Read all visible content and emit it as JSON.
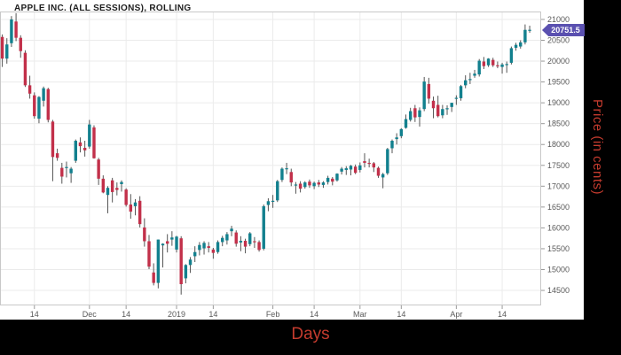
{
  "title": "APPLE INC. (ALL SESSIONS), ROLLING",
  "axes": {
    "x_title": "Days",
    "y_title": "Price (in cents)"
  },
  "last_price_label": "20751.5",
  "colors": {
    "up": "#12808e",
    "down": "#c2304a",
    "wick": "#555555",
    "grid": "#ebebeb",
    "border": "#c8c8c8",
    "tick_mark": "#9a9a9a",
    "tick_text": "#595959",
    "axis_title": "#c43b2e",
    "badge_bg": "#5a50b0",
    "badge_text": "#ffffff",
    "chart_bg": "#ffffff",
    "page_bg": "#000000"
  },
  "chart_data": {
    "type": "candlestick",
    "title": "APPLE INC. (ALL SESSIONS), ROLLING",
    "xlabel": "Days",
    "ylabel": "Price (in cents)",
    "legend": "none",
    "grid": true,
    "ylim": [
      14140,
      21190
    ],
    "y_ticks": [
      14500,
      15000,
      15500,
      16000,
      16500,
      17000,
      17500,
      18000,
      18500,
      19000,
      19500,
      20000,
      20500,
      21000
    ],
    "x_tick_labels": [
      {
        "index": 7,
        "label": "14"
      },
      {
        "index": 19,
        "label": "Dec"
      },
      {
        "index": 27,
        "label": "14"
      },
      {
        "index": 38,
        "label": "2019"
      },
      {
        "index": 46,
        "label": "14"
      },
      {
        "index": 59,
        "label": "Feb"
      },
      {
        "index": 68,
        "label": "14"
      },
      {
        "index": 78,
        "label": "Mar"
      },
      {
        "index": 87,
        "label": "14"
      },
      {
        "index": 99,
        "label": "Apr"
      },
      {
        "index": 109,
        "label": "14"
      }
    ],
    "last_price": 20751.5,
    "columns": [
      "date",
      "open",
      "high",
      "low",
      "close"
    ],
    "candles": [
      [
        "2018-11-05",
        20580,
        20640,
        19860,
        20060
      ],
      [
        "2018-11-06",
        20060,
        20550,
        19940,
        20400
      ],
      [
        "2018-11-07",
        20430,
        21080,
        20340,
        21000
      ],
      [
        "2018-11-08",
        20950,
        21150,
        20480,
        20560
      ],
      [
        "2018-11-09",
        20560,
        20620,
        20080,
        20240
      ],
      [
        "2018-11-12",
        20200,
        20260,
        19380,
        19420
      ],
      [
        "2018-11-13",
        19420,
        19650,
        19100,
        19220
      ],
      [
        "2018-11-14",
        19180,
        19250,
        18620,
        18680
      ],
      [
        "2018-11-15",
        18620,
        19160,
        18510,
        19140
      ],
      [
        "2018-11-16",
        19050,
        19390,
        18910,
        19350
      ],
      [
        "2018-11-19",
        19330,
        19360,
        18530,
        18590
      ],
      [
        "2018-11-20",
        18550,
        18590,
        17120,
        17700
      ],
      [
        "2018-11-21",
        17790,
        17900,
        17610,
        17680
      ],
      [
        "2018-11-23",
        17440,
        17560,
        17060,
        17230
      ],
      [
        "2018-11-26",
        17450,
        17590,
        17210,
        17460
      ],
      [
        "2018-11-27",
        17310,
        17460,
        17080,
        17420
      ],
      [
        "2018-11-28",
        17610,
        18120,
        17560,
        18090
      ],
      [
        "2018-11-29",
        18050,
        18170,
        17810,
        17960
      ],
      [
        "2018-11-30",
        17920,
        18090,
        17710,
        17860
      ],
      [
        "2018-12-03",
        17950,
        18590,
        17900,
        18480
      ],
      [
        "2018-12-04",
        18410,
        18460,
        17660,
        17670
      ],
      [
        "2018-12-06",
        17640,
        17680,
        17030,
        17180
      ],
      [
        "2018-12-07",
        17180,
        17260,
        16830,
        16850
      ],
      [
        "2018-12-10",
        16790,
        17000,
        16350,
        16960
      ],
      [
        "2018-12-11",
        17140,
        17200,
        16610,
        16860
      ],
      [
        "2018-12-12",
        16960,
        17090,
        16780,
        16910
      ],
      [
        "2018-12-13",
        17050,
        17140,
        16870,
        17100
      ],
      [
        "2018-12-14",
        16920,
        16950,
        16510,
        16550
      ],
      [
        "2018-12-17",
        16560,
        16810,
        16220,
        16390
      ],
      [
        "2018-12-18",
        16520,
        16690,
        16300,
        16610
      ],
      [
        "2018-12-19",
        16650,
        16760,
        16010,
        16090
      ],
      [
        "2018-12-20",
        16010,
        16230,
        15550,
        15680
      ],
      [
        "2018-12-21",
        15680,
        15830,
        15010,
        15070
      ],
      [
        "2018-12-24",
        14930,
        15150,
        14620,
        14680
      ],
      [
        "2018-12-26",
        14680,
        15720,
        14550,
        15720
      ],
      [
        "2018-12-27",
        15580,
        15630,
        15050,
        15620
      ],
      [
        "2018-12-28",
        15680,
        15850,
        15410,
        15620
      ],
      [
        "2018-12-31",
        15720,
        15920,
        15570,
        15770
      ],
      [
        "2019-01-02",
        15480,
        15810,
        15410,
        15790
      ],
      [
        "2019-01-03",
        15750,
        15800,
        14400,
        14650
      ],
      [
        "2019-01-04",
        14790,
        15130,
        14670,
        15110
      ],
      [
        "2019-01-07",
        15110,
        15300,
        14920,
        15240
      ],
      [
        "2019-01-08",
        15320,
        15560,
        15180,
        15420
      ],
      [
        "2019-01-09",
        15470,
        15660,
        15340,
        15590
      ],
      [
        "2019-01-10",
        15510,
        15680,
        15360,
        15640
      ],
      [
        "2019-01-11",
        15560,
        15660,
        15410,
        15520
      ],
      [
        "2019-01-14",
        15480,
        15520,
        15260,
        15400
      ],
      [
        "2019-01-15",
        15420,
        15700,
        15380,
        15660
      ],
      [
        "2019-01-16",
        15660,
        15810,
        15560,
        15760
      ],
      [
        "2019-01-17",
        15700,
        15900,
        15600,
        15850
      ],
      [
        "2019-01-18",
        15920,
        16050,
        15800,
        15980
      ],
      [
        "2019-01-22",
        15890,
        15940,
        15550,
        15620
      ],
      [
        "2019-01-23",
        15650,
        15800,
        15440,
        15690
      ],
      [
        "2019-01-24",
        15690,
        15740,
        15390,
        15550
      ],
      [
        "2019-01-25",
        15610,
        15900,
        15560,
        15870
      ],
      [
        "2019-01-28",
        15680,
        15780,
        15520,
        15660
      ],
      [
        "2019-01-29",
        15660,
        15700,
        15430,
        15470
      ],
      [
        "2019-01-30",
        15500,
        16560,
        15460,
        16520
      ],
      [
        "2019-01-31",
        16550,
        16710,
        16400,
        16640
      ],
      [
        "2019-02-01",
        16640,
        16790,
        16480,
        16650
      ],
      [
        "2019-02-04",
        16660,
        17150,
        16620,
        17120
      ],
      [
        "2019-02-05",
        17150,
        17450,
        17100,
        17420
      ],
      [
        "2019-02-06",
        17420,
        17560,
        17290,
        17430
      ],
      [
        "2019-02-07",
        17340,
        17420,
        17000,
        17090
      ],
      [
        "2019-02-08",
        17030,
        17100,
        16820,
        17040
      ],
      [
        "2019-02-11",
        17060,
        17120,
        16850,
        16940
      ],
      [
        "2019-02-12",
        16980,
        17120,
        16940,
        17090
      ],
      [
        "2019-02-13",
        17110,
        17160,
        16960,
        17020
      ],
      [
        "2019-02-14",
        17000,
        17110,
        16930,
        17080
      ],
      [
        "2019-02-15",
        17090,
        17150,
        16980,
        17040
      ],
      [
        "2019-02-19",
        17030,
        17120,
        16960,
        17090
      ],
      [
        "2019-02-20",
        17100,
        17250,
        17040,
        17200
      ],
      [
        "2019-02-21",
        17180,
        17220,
        17020,
        17110
      ],
      [
        "2019-02-22",
        17140,
        17310,
        17110,
        17300
      ],
      [
        "2019-02-25",
        17350,
        17460,
        17280,
        17420
      ],
      [
        "2019-02-26",
        17390,
        17480,
        17270,
        17430
      ],
      [
        "2019-02-27",
        17400,
        17510,
        17260,
        17490
      ],
      [
        "2019-02-28",
        17470,
        17520,
        17290,
        17320
      ],
      [
        "2019-03-01",
        17390,
        17570,
        17330,
        17500
      ],
      [
        "2019-03-04",
        17600,
        17790,
        17450,
        17560
      ],
      [
        "2019-03-05",
        17560,
        17660,
        17450,
        17550
      ],
      [
        "2019-03-06",
        17550,
        17580,
        17340,
        17450
      ],
      [
        "2019-03-07",
        17440,
        17470,
        17200,
        17250
      ],
      [
        "2019-03-08",
        17210,
        17320,
        16950,
        17290
      ],
      [
        "2019-03-11",
        17310,
        17920,
        17270,
        17890
      ],
      [
        "2019-03-12",
        17910,
        18120,
        17790,
        18090
      ],
      [
        "2019-03-13",
        18130,
        18270,
        18000,
        18170
      ],
      [
        "2019-03-14",
        18200,
        18390,
        18150,
        18370
      ],
      [
        "2019-03-15",
        18400,
        18720,
        18380,
        18610
      ],
      [
        "2019-03-18",
        18590,
        18880,
        18550,
        18800
      ],
      [
        "2019-03-19",
        18870,
        18950,
        18540,
        18650
      ],
      [
        "2019-03-20",
        18660,
        18890,
        18430,
        18820
      ],
      [
        "2019-03-21",
        18850,
        19620,
        18800,
        19510
      ],
      [
        "2019-03-22",
        19450,
        19600,
        18980,
        19100
      ],
      [
        "2019-03-25",
        19050,
        19150,
        18630,
        18870
      ],
      [
        "2019-03-26",
        18950,
        19170,
        18650,
        18680
      ],
      [
        "2019-03-27",
        18700,
        18950,
        18630,
        18850
      ],
      [
        "2019-03-28",
        18860,
        18940,
        18710,
        18870
      ],
      [
        "2019-03-29",
        18900,
        19000,
        18780,
        19000
      ],
      [
        "2019-04-01",
        19110,
        19180,
        18950,
        19120
      ],
      [
        "2019-04-02",
        19110,
        19430,
        19050,
        19400
      ],
      [
        "2019-04-03",
        19420,
        19660,
        19350,
        19540
      ],
      [
        "2019-04-04",
        19560,
        19720,
        19450,
        19570
      ],
      [
        "2019-04-05",
        19650,
        19790,
        19600,
        19700
      ],
      [
        "2019-04-08",
        19680,
        20050,
        19630,
        20010
      ],
      [
        "2019-04-09",
        19990,
        20100,
        19810,
        19880
      ],
      [
        "2019-04-10",
        19900,
        20070,
        19860,
        20060
      ],
      [
        "2019-04-11",
        20030,
        20080,
        19860,
        19900
      ],
      [
        "2019-04-12",
        19900,
        19990,
        19830,
        19890
      ],
      [
        "2019-04-15",
        19860,
        19960,
        19700,
        19920
      ],
      [
        "2019-04-16",
        19930,
        19990,
        19720,
        19930
      ],
      [
        "2019-04-17",
        19960,
        20350,
        19920,
        20310
      ],
      [
        "2019-04-18",
        20320,
        20440,
        20250,
        20390
      ],
      [
        "2019-04-22",
        20350,
        20500,
        20300,
        20450
      ],
      [
        "2019-04-23",
        20450,
        20880,
        20400,
        20750
      ],
      [
        "2019-04-24",
        20740,
        20850,
        20680,
        20751.5
      ]
    ]
  }
}
